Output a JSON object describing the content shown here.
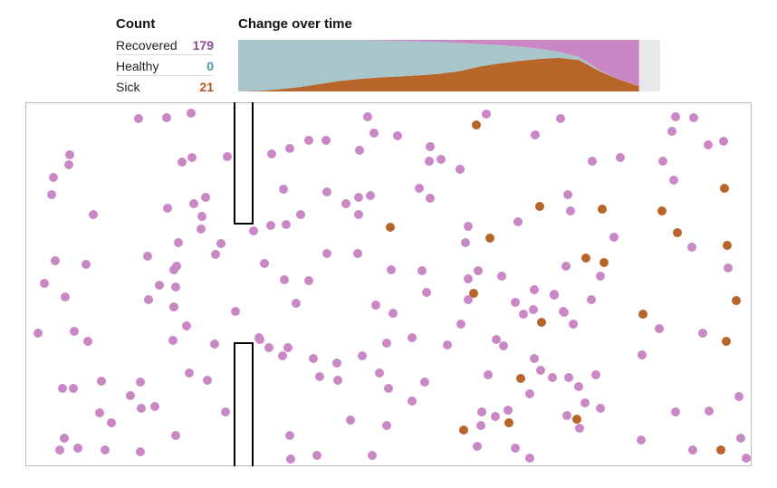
{
  "counts": {
    "title": "Count",
    "recovered_label": "Recovered",
    "recovered_value": "179",
    "healthy_label": "Healthy",
    "healthy_value": "0",
    "sick_label": "Sick",
    "sick_value": "21"
  },
  "colors": {
    "recovered": "#c987c6",
    "healthy": "#a8c6ca",
    "sick": "#b8652a",
    "recovered_text": "#8e4a92",
    "healthy_text": "#4a9aa5",
    "sick_text": "#b3561e",
    "remaining_time": "#e8e8e8"
  },
  "chart_data": [
    {
      "type": "area",
      "title": "Change over time",
      "stacking": "fraction_of_population",
      "x": [
        0,
        0.05,
        0.1,
        0.15,
        0.2,
        0.25,
        0.3,
        0.35,
        0.4,
        0.45,
        0.5,
        0.55,
        0.6,
        0.65,
        0.7,
        0.75,
        0.8,
        0.85,
        0.9,
        0.95,
        1.0
      ],
      "series": [
        {
          "name": "Sick",
          "values": [
            0.0,
            0.01,
            0.04,
            0.08,
            0.14,
            0.2,
            0.24,
            0.27,
            0.29,
            0.31,
            0.34,
            0.39,
            0.48,
            0.54,
            0.59,
            0.63,
            0.65,
            0.61,
            0.4,
            0.23,
            0.1
          ]
        },
        {
          "name": "Healthy",
          "values": [
            1.0,
            0.99,
            0.96,
            0.92,
            0.86,
            0.8,
            0.76,
            0.72,
            0.69,
            0.66,
            0.62,
            0.55,
            0.44,
            0.36,
            0.28,
            0.2,
            0.12,
            0.06,
            0.02,
            0.0,
            0.0
          ]
        },
        {
          "name": "Recovered",
          "values": [
            0.0,
            0.0,
            0.0,
            0.0,
            0.0,
            0.0,
            0.0,
            0.01,
            0.02,
            0.03,
            0.04,
            0.06,
            0.08,
            0.1,
            0.13,
            0.17,
            0.23,
            0.33,
            0.58,
            0.77,
            0.9
          ]
        }
      ],
      "elapsed_fraction": 0.95
    },
    {
      "type": "scatter",
      "x_range": [
        0,
        800
      ],
      "y_range": [
        0,
        400
      ],
      "wall": {
        "x": 240,
        "gap_from": 133,
        "gap_to": 265
      },
      "points": [
        [
          124,
          17,
          "r"
        ],
        [
          155,
          16,
          "r"
        ],
        [
          182,
          11,
          "r"
        ],
        [
          377,
          15,
          "r"
        ],
        [
          508,
          12,
          "r"
        ],
        [
          497,
          24,
          "s"
        ],
        [
          590,
          17,
          "r"
        ],
        [
          717,
          15,
          "r"
        ],
        [
          737,
          16,
          "r"
        ],
        [
          48,
          57,
          "r"
        ],
        [
          47,
          68,
          "r"
        ],
        [
          30,
          82,
          "r"
        ],
        [
          28,
          101,
          "r"
        ],
        [
          74,
          123,
          "r"
        ],
        [
          172,
          65,
          "r"
        ],
        [
          183,
          60,
          "r"
        ],
        [
          222,
          59,
          "r"
        ],
        [
          271,
          56,
          "r"
        ],
        [
          291,
          50,
          "r"
        ],
        [
          312,
          41,
          "r"
        ],
        [
          331,
          41,
          "r"
        ],
        [
          368,
          52,
          "r"
        ],
        [
          384,
          33,
          "r"
        ],
        [
          410,
          36,
          "r"
        ],
        [
          446,
          48,
          "r"
        ],
        [
          458,
          62,
          "r"
        ],
        [
          445,
          64,
          "r"
        ],
        [
          479,
          73,
          "r"
        ],
        [
          562,
          35,
          "r"
        ],
        [
          625,
          64,
          "r"
        ],
        [
          656,
          60,
          "r"
        ],
        [
          703,
          64,
          "r"
        ],
        [
          713,
          31,
          "r"
        ],
        [
          753,
          46,
          "r"
        ],
        [
          770,
          42,
          "r"
        ],
        [
          715,
          85,
          "r"
        ],
        [
          771,
          94,
          "s"
        ],
        [
          156,
          116,
          "r"
        ],
        [
          185,
          111,
          "r"
        ],
        [
          198,
          104,
          "r"
        ],
        [
          194,
          125,
          "r"
        ],
        [
          193,
          139,
          "r"
        ],
        [
          284,
          95,
          "r"
        ],
        [
          270,
          135,
          "r"
        ],
        [
          287,
          134,
          "r"
        ],
        [
          303,
          123,
          "r"
        ],
        [
          332,
          98,
          "r"
        ],
        [
          353,
          111,
          "r"
        ],
        [
          367,
          104,
          "r"
        ],
        [
          380,
          102,
          "r"
        ],
        [
          367,
          123,
          "r"
        ],
        [
          402,
          137,
          "s"
        ],
        [
          434,
          94,
          "r"
        ],
        [
          446,
          105,
          "r"
        ],
        [
          488,
          136,
          "r"
        ],
        [
          543,
          131,
          "r"
        ],
        [
          567,
          114,
          "s"
        ],
        [
          598,
          101,
          "r"
        ],
        [
          601,
          119,
          "r"
        ],
        [
          636,
          117,
          "s"
        ],
        [
          702,
          119,
          "s"
        ],
        [
          719,
          143,
          "s"
        ],
        [
          168,
          154,
          "r"
        ],
        [
          134,
          169,
          "r"
        ],
        [
          215,
          155,
          "r"
        ],
        [
          209,
          167,
          "r"
        ],
        [
          251,
          141,
          "r"
        ],
        [
          166,
          180,
          "r"
        ],
        [
          165,
          203,
          "r"
        ],
        [
          147,
          201,
          "r"
        ],
        [
          135,
          217,
          "r"
        ],
        [
          163,
          225,
          "r"
        ],
        [
          263,
          177,
          "r"
        ],
        [
          285,
          195,
          "r"
        ],
        [
          312,
          196,
          "r"
        ],
        [
          332,
          166,
          "r"
        ],
        [
          366,
          166,
          "r"
        ],
        [
          403,
          184,
          "r"
        ],
        [
          437,
          185,
          "r"
        ],
        [
          442,
          209,
          "r"
        ],
        [
          485,
          154,
          "r"
        ],
        [
          512,
          149,
          "s"
        ],
        [
          499,
          185,
          "r"
        ],
        [
          488,
          194,
          "r"
        ],
        [
          525,
          191,
          "r"
        ],
        [
          494,
          210,
          "s"
        ],
        [
          488,
          217,
          "r"
        ],
        [
          649,
          148,
          "r"
        ],
        [
          618,
          171,
          "s"
        ],
        [
          638,
          176,
          "s"
        ],
        [
          634,
          191,
          "r"
        ],
        [
          596,
          180,
          "r"
        ],
        [
          583,
          212,
          "r"
        ],
        [
          624,
          217,
          "r"
        ],
        [
          735,
          159,
          "r"
        ],
        [
          774,
          157,
          "s"
        ],
        [
          775,
          182,
          "r"
        ],
        [
          784,
          218,
          "s"
        ],
        [
          32,
          174,
          "r"
        ],
        [
          66,
          178,
          "r"
        ],
        [
          20,
          199,
          "r"
        ],
        [
          43,
          214,
          "r"
        ],
        [
          163,
          184,
          "r"
        ],
        [
          298,
          221,
          "r"
        ],
        [
          386,
          223,
          "r"
        ],
        [
          405,
          232,
          "r"
        ],
        [
          540,
          220,
          "r"
        ],
        [
          561,
          206,
          "r"
        ],
        [
          549,
          233,
          "r"
        ],
        [
          560,
          228,
          "r"
        ],
        [
          583,
          211,
          "r"
        ],
        [
          593,
          230,
          "r"
        ],
        [
          569,
          242,
          "s"
        ],
        [
          594,
          231,
          "r"
        ],
        [
          604,
          244,
          "r"
        ],
        [
          681,
          233,
          "s"
        ],
        [
          699,
          249,
          "r"
        ],
        [
          13,
          254,
          "r"
        ],
        [
          53,
          252,
          "r"
        ],
        [
          68,
          263,
          "r"
        ],
        [
          177,
          246,
          "r"
        ],
        [
          231,
          230,
          "r"
        ],
        [
          162,
          262,
          "r"
        ],
        [
          208,
          266,
          "r"
        ],
        [
          258,
          261,
          "r"
        ],
        [
          268,
          270,
          "r"
        ],
        [
          257,
          259,
          "r"
        ],
        [
          289,
          270,
          "r"
        ],
        [
          283,
          279,
          "r"
        ],
        [
          317,
          282,
          "r"
        ],
        [
          343,
          287,
          "r"
        ],
        [
          371,
          279,
          "r"
        ],
        [
          398,
          265,
          "r"
        ],
        [
          426,
          259,
          "r"
        ],
        [
          465,
          267,
          "r"
        ],
        [
          480,
          244,
          "r"
        ],
        [
          519,
          261,
          "r"
        ],
        [
          527,
          268,
          "r"
        ],
        [
          561,
          282,
          "r"
        ],
        [
          773,
          263,
          "s"
        ],
        [
          747,
          254,
          "r"
        ],
        [
          680,
          278,
          "r"
        ],
        [
          83,
          307,
          "r"
        ],
        [
          40,
          315,
          "r"
        ],
        [
          52,
          315,
          "r"
        ],
        [
          115,
          323,
          "r"
        ],
        [
          126,
          308,
          "r"
        ],
        [
          180,
          298,
          "r"
        ],
        [
          200,
          306,
          "r"
        ],
        [
          324,
          302,
          "r"
        ],
        [
          344,
          306,
          "r"
        ],
        [
          390,
          298,
          "r"
        ],
        [
          400,
          315,
          "r"
        ],
        [
          440,
          308,
          "r"
        ],
        [
          426,
          329,
          "r"
        ],
        [
          510,
          300,
          "r"
        ],
        [
          546,
          304,
          "s"
        ],
        [
          568,
          295,
          "r"
        ],
        [
          581,
          303,
          "r"
        ],
        [
          599,
          303,
          "r"
        ],
        [
          556,
          321,
          "r"
        ],
        [
          610,
          313,
          "r"
        ],
        [
          629,
          300,
          "r"
        ],
        [
          617,
          331,
          "r"
        ],
        [
          634,
          337,
          "r"
        ],
        [
          787,
          324,
          "r"
        ],
        [
          81,
          342,
          "r"
        ],
        [
          94,
          353,
          "r"
        ],
        [
          127,
          337,
          "r"
        ],
        [
          142,
          335,
          "r"
        ],
        [
          220,
          341,
          "r"
        ],
        [
          358,
          350,
          "r"
        ],
        [
          398,
          356,
          "r"
        ],
        [
          503,
          341,
          "r"
        ],
        [
          502,
          356,
          "r"
        ],
        [
          518,
          346,
          "r"
        ],
        [
          532,
          339,
          "r"
        ],
        [
          533,
          353,
          "s"
        ],
        [
          608,
          349,
          "s"
        ],
        [
          597,
          345,
          "r"
        ],
        [
          611,
          359,
          "r"
        ],
        [
          717,
          341,
          "r"
        ],
        [
          754,
          340,
          "r"
        ],
        [
          483,
          361,
          "s"
        ],
        [
          42,
          370,
          "r"
        ],
        [
          37,
          383,
          "r"
        ],
        [
          57,
          381,
          "r"
        ],
        [
          87,
          383,
          "r"
        ],
        [
          126,
          385,
          "r"
        ],
        [
          165,
          367,
          "r"
        ],
        [
          291,
          367,
          "r"
        ],
        [
          321,
          389,
          "r"
        ],
        [
          382,
          389,
          "r"
        ],
        [
          498,
          379,
          "r"
        ],
        [
          540,
          381,
          "r"
        ],
        [
          556,
          392,
          "r"
        ],
        [
          679,
          372,
          "r"
        ],
        [
          736,
          383,
          "r"
        ],
        [
          767,
          383,
          "s"
        ],
        [
          789,
          370,
          "r"
        ],
        [
          795,
          392,
          "r"
        ],
        [
          292,
          393,
          "r"
        ]
      ]
    }
  ]
}
